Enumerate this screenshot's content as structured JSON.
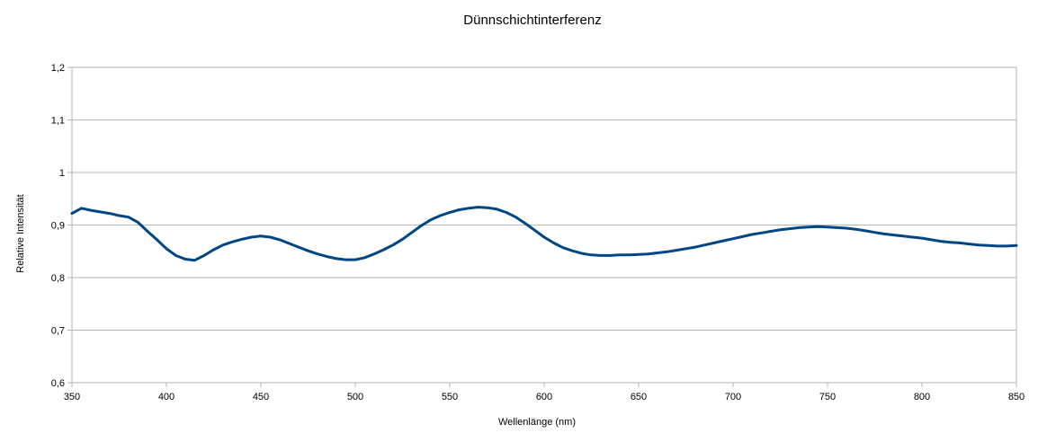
{
  "chart_data": {
    "type": "line",
    "title": "Dünnschichtinterferenz",
    "xlabel": "Wellenlänge (nm)",
    "ylabel": "Relative Intensität",
    "xlim": [
      350,
      850
    ],
    "ylim": [
      0.6,
      1.2
    ],
    "xticks": [
      "350",
      "400",
      "450",
      "500",
      "550",
      "600",
      "650",
      "700",
      "750",
      "800",
      "850"
    ],
    "yticks": [
      "0,6",
      "0,7",
      "0,8",
      "0,9",
      "1",
      "1,1",
      "1,2"
    ],
    "grid": true,
    "legend": "none",
    "series": [
      {
        "color": "#004586",
        "x": [
          350,
          355,
          360,
          365,
          370,
          375,
          380,
          385,
          390,
          395,
          400,
          405,
          410,
          415,
          420,
          425,
          430,
          435,
          440,
          445,
          450,
          455,
          460,
          465,
          470,
          475,
          480,
          485,
          490,
          495,
          500,
          505,
          510,
          515,
          520,
          525,
          530,
          535,
          540,
          545,
          550,
          555,
          560,
          565,
          570,
          575,
          580,
          585,
          590,
          595,
          600,
          605,
          610,
          615,
          620,
          625,
          630,
          635,
          640,
          645,
          650,
          655,
          660,
          665,
          670,
          675,
          680,
          685,
          690,
          695,
          700,
          705,
          710,
          715,
          720,
          725,
          730,
          735,
          740,
          745,
          750,
          755,
          760,
          765,
          770,
          775,
          780,
          785,
          790,
          795,
          800,
          805,
          810,
          815,
          820,
          825,
          830,
          835,
          840,
          845,
          850
        ],
        "y": [
          0.922,
          0.932,
          0.928,
          0.925,
          0.922,
          0.918,
          0.915,
          0.905,
          0.888,
          0.872,
          0.855,
          0.842,
          0.835,
          0.833,
          0.842,
          0.853,
          0.862,
          0.868,
          0.873,
          0.877,
          0.879,
          0.877,
          0.872,
          0.865,
          0.858,
          0.851,
          0.845,
          0.84,
          0.836,
          0.834,
          0.834,
          0.838,
          0.845,
          0.853,
          0.862,
          0.873,
          0.886,
          0.899,
          0.91,
          0.918,
          0.924,
          0.929,
          0.932,
          0.934,
          0.933,
          0.93,
          0.924,
          0.915,
          0.903,
          0.89,
          0.877,
          0.866,
          0.857,
          0.851,
          0.846,
          0.843,
          0.842,
          0.842,
          0.843,
          0.843,
          0.844,
          0.845,
          0.847,
          0.849,
          0.852,
          0.855,
          0.858,
          0.862,
          0.866,
          0.87,
          0.874,
          0.878,
          0.882,
          0.885,
          0.888,
          0.891,
          0.893,
          0.895,
          0.896,
          0.897,
          0.896,
          0.895,
          0.894,
          0.892,
          0.889,
          0.886,
          0.883,
          0.881,
          0.879,
          0.877,
          0.875,
          0.872,
          0.869,
          0.867,
          0.866,
          0.864,
          0.862,
          0.861,
          0.86,
          0.86,
          0.861
        ]
      }
    ]
  }
}
